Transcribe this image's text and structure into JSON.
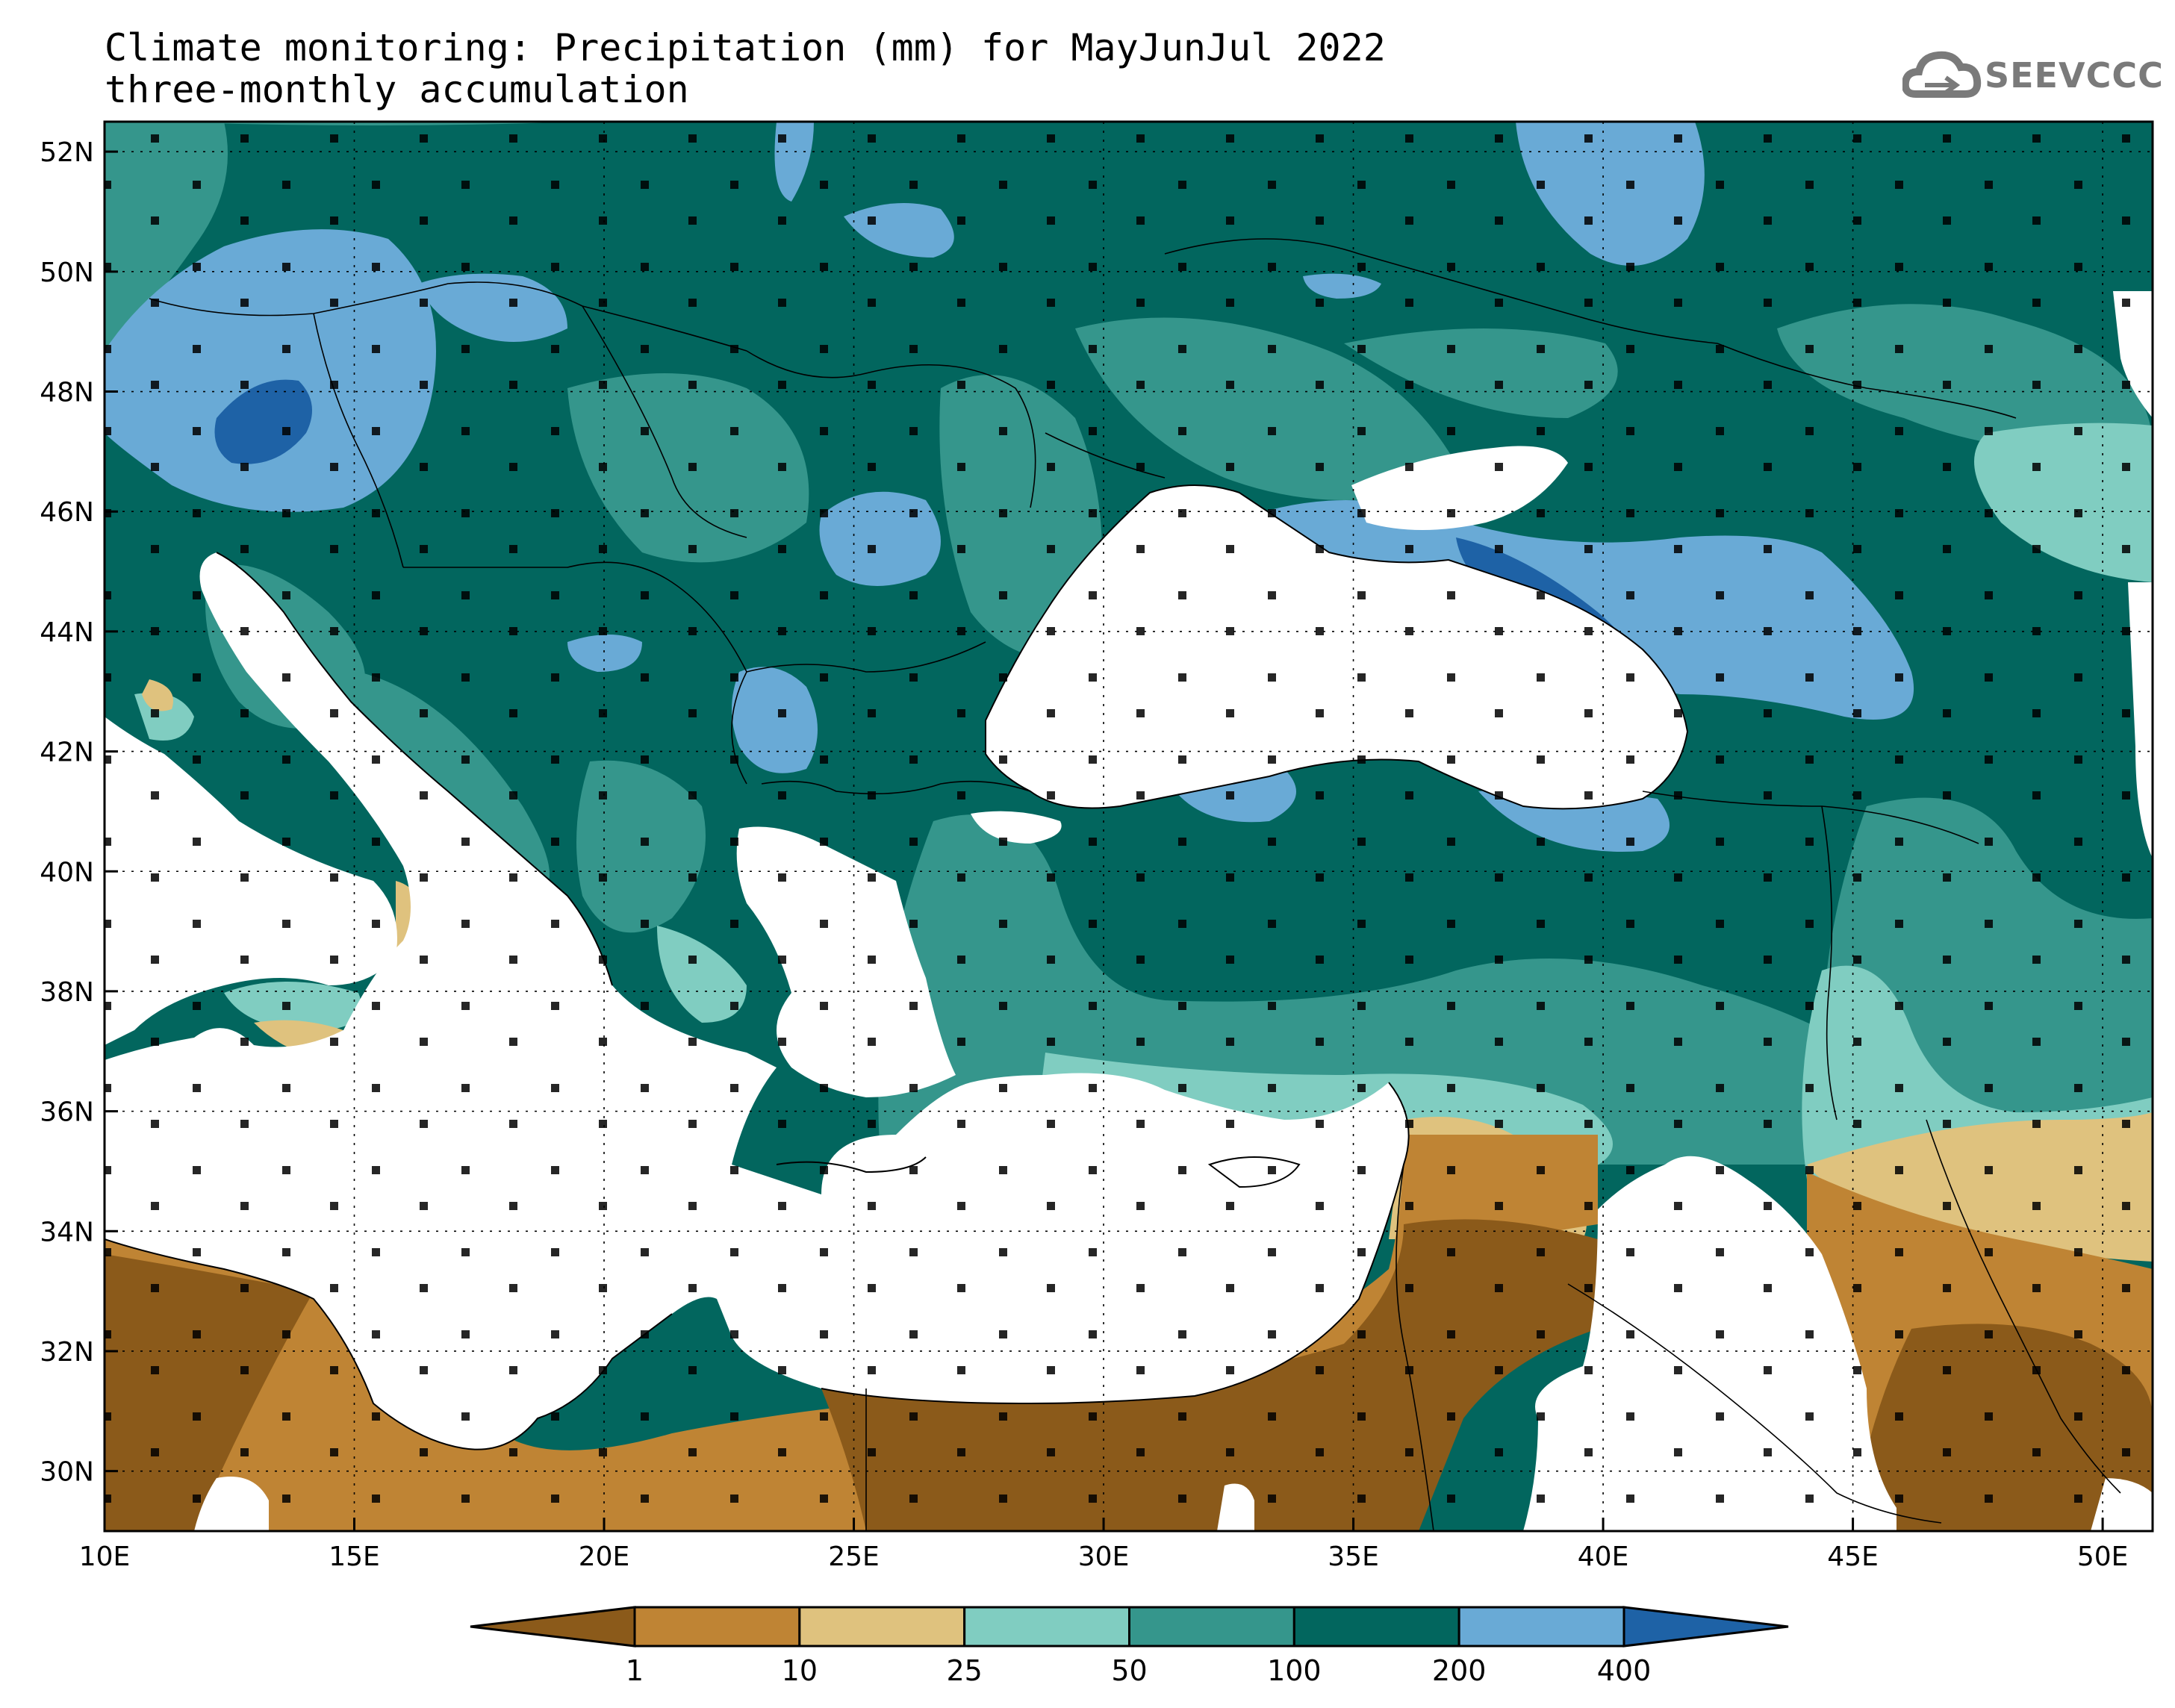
{
  "title": {
    "line1": "Climate monitoring: Precipitation (mm) for MayJunJul 2022",
    "line2": "three-monthly accumulation"
  },
  "logo": {
    "text": "SEEVCCC",
    "icon": "cloud-icon"
  },
  "map": {
    "lon_labels": [
      "10E",
      "15E",
      "20E",
      "25E",
      "30E",
      "35E",
      "40E",
      "45E",
      "50E"
    ],
    "lat_labels": [
      "52N",
      "50N",
      "48N",
      "46N",
      "44N",
      "42N",
      "40N",
      "38N",
      "36N",
      "34N",
      "32N",
      "30N"
    ]
  },
  "colorbar": {
    "thresholds": [
      "1",
      "10",
      "25",
      "50",
      "100",
      "200",
      "400"
    ],
    "colors": [
      "#8b5a1a",
      "#bf8434",
      "#dfc27e",
      "#80cdc1",
      "#35968c",
      "#02665e",
      "#69aad6",
      "#1e62a6"
    ]
  }
}
